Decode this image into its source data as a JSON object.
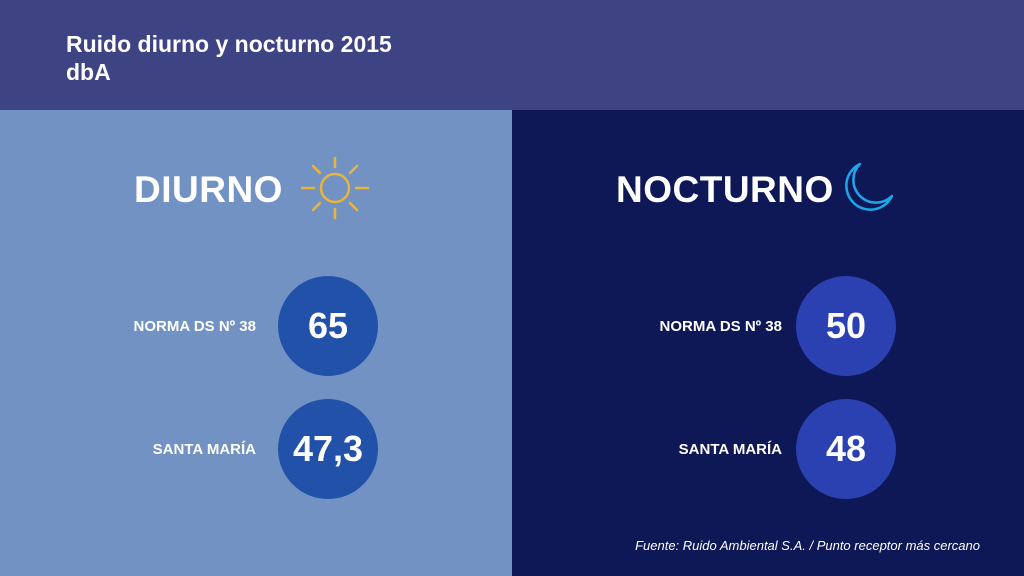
{
  "header": {
    "title_line1": "Ruido diurno y nocturno 2015",
    "title_line2": "dbA"
  },
  "day": {
    "heading": "DIURNO",
    "icon": "sun-icon",
    "rows": [
      {
        "label": "NORMA DS Nº 38",
        "value": "65"
      },
      {
        "label": "SANTA MARÍA",
        "value": "47,3"
      }
    ]
  },
  "night": {
    "heading": "NOCTURNO",
    "icon": "moon-icon",
    "rows": [
      {
        "label": "NORMA DS Nº 38",
        "value": "50"
      },
      {
        "label": "SANTA MARÍA",
        "value": "48"
      }
    ]
  },
  "footer": {
    "source": "Fuente: Ruido Ambiental S.A. / Punto receptor más cercano"
  },
  "colors": {
    "header_bg": "#3e4383",
    "day_bg": "#7392c4",
    "night_bg": "#0f1857",
    "day_circle": "#2151a8",
    "night_circle": "#2b41b2",
    "sun": "#e8b43a",
    "moon": "#1ea7e8"
  }
}
